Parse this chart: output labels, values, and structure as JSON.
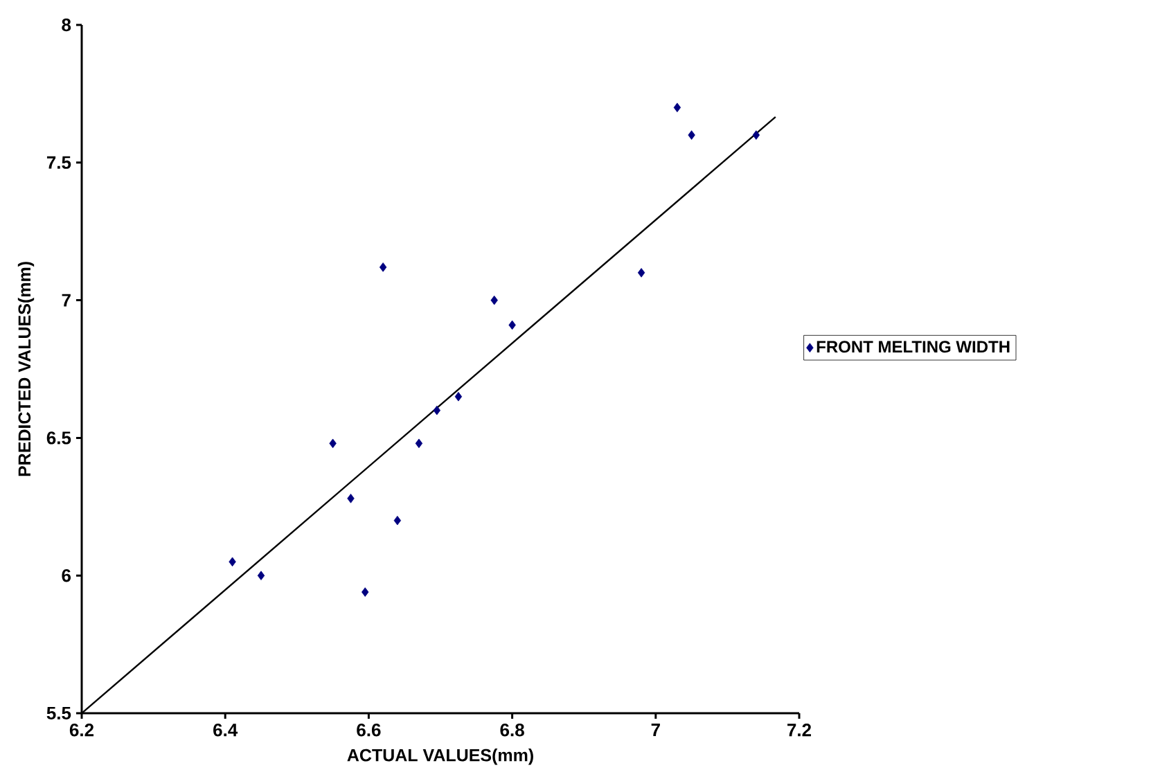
{
  "chart_data": {
    "type": "scatter",
    "xlabel": "ACTUAL VALUES(mm)",
    "ylabel": "PREDICTED VALUES(mm)",
    "xlim": [
      6.2,
      7.2
    ],
    "xticks": [
      6.2,
      6.4,
      6.6,
      6.8,
      7,
      7.2
    ],
    "ylim": [
      5.5,
      8
    ],
    "yticks": [
      5.5,
      6,
      6.5,
      7,
      7.5,
      8
    ],
    "grid": false,
    "legend": "right",
    "marker": "diamond",
    "series": [
      {
        "name": "FRONT MELTING WIDTH",
        "color": "#000080",
        "x": [
          6.41,
          6.45,
          6.55,
          6.575,
          6.595,
          6.62,
          6.64,
          6.67,
          6.695,
          6.725,
          6.775,
          6.8,
          6.98,
          7.03,
          7.05,
          7.14
        ],
        "values": [
          6.05,
          6.0,
          6.48,
          6.28,
          5.94,
          7.12,
          6.2,
          6.48,
          6.6,
          6.65,
          7.0,
          6.91,
          7.1,
          7.7,
          7.6,
          7.6
        ]
      },
      {
        "type": "line",
        "marker": "none",
        "color": "#000000",
        "x": [
          6.2,
          7.167
        ],
        "values": [
          5.5,
          7.666
        ]
      }
    ]
  }
}
